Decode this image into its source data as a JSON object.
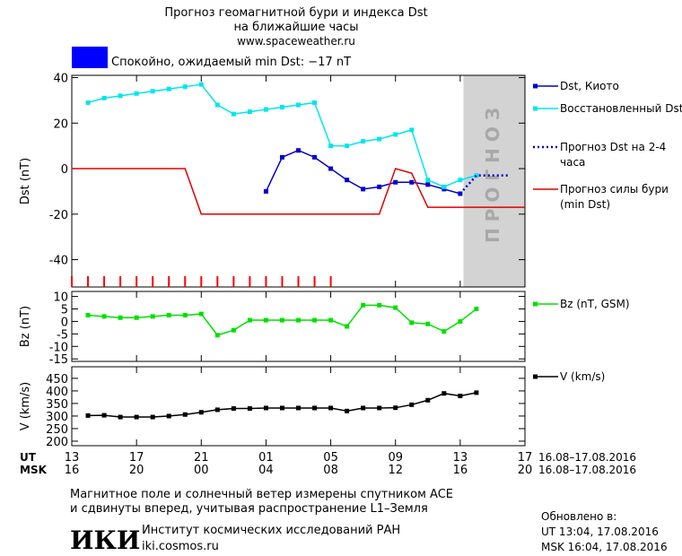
{
  "header": {
    "title": "Прогноз геомагнитной бури и индекса Dst",
    "subtitle": "на ближайшие часы",
    "url": "www.spaceweather.ru",
    "status": {
      "text": "Спокойно, ожидаемый min Dst: −17 nT",
      "color": "#0000ff"
    }
  },
  "chart_data": [
    {
      "type": "line",
      "ylabel": "Dst (nT)",
      "xlim": [
        0,
        28
      ],
      "xticks": [
        0,
        4,
        8,
        12,
        16,
        20,
        24,
        28
      ],
      "ylim": [
        -52,
        41
      ],
      "yticks": [
        -40,
        -20,
        0,
        20,
        40
      ],
      "forecast_span": [
        24.2,
        28
      ],
      "forecast_label": "ПРОГНОЗ",
      "hour_marks": [
        0,
        1,
        2,
        3,
        4,
        5,
        6,
        7,
        8,
        9,
        10,
        11,
        12,
        13,
        14,
        15,
        16
      ],
      "hour_marks_color": "#ff0000",
      "series": [
        {
          "name": "Dst, Киото",
          "color": "#0000cc",
          "style": "solid",
          "marker": true,
          "x": [
            12,
            13,
            14,
            15,
            16,
            17,
            18,
            19,
            20,
            21,
            22,
            23,
            24
          ],
          "values": [
            -10,
            5,
            8,
            5,
            0,
            -5,
            -9,
            -8,
            -6,
            -6,
            -7,
            -9,
            -11
          ]
        },
        {
          "name": "Восстановленный Dst",
          "color": "#00e5ee",
          "style": "solid",
          "marker": true,
          "x": [
            1,
            2,
            3,
            4,
            5,
            6,
            7,
            8,
            9,
            10,
            11,
            12,
            13,
            14,
            15,
            16,
            17,
            18,
            19,
            20,
            21,
            22,
            23,
            24,
            25
          ],
          "values": [
            29,
            31,
            32,
            33,
            34,
            35,
            36,
            37,
            28,
            24,
            25,
            26,
            27,
            28,
            29,
            10,
            10,
            12,
            13,
            15,
            17,
            -5,
            -8,
            -5,
            -3
          ]
        },
        {
          "name": "Прогноз Dst на 2-4 часа",
          "color": "#0000cc",
          "style": "dotted",
          "marker": false,
          "x": [
            24,
            25,
            26,
            27
          ],
          "values": [
            -11,
            -3,
            -3,
            -3
          ]
        },
        {
          "name": "Прогноз силы бури (min Dst)",
          "color": "#dd0000",
          "style": "solid",
          "marker": false,
          "x": [
            0,
            7,
            8,
            19,
            20,
            21,
            22,
            28
          ],
          "values": [
            0,
            0,
            -20,
            -20,
            0,
            -2,
            -17,
            -17
          ]
        }
      ]
    },
    {
      "type": "line",
      "ylabel": "Bz (nT)",
      "xlim": [
        0,
        28
      ],
      "xticks": [
        0,
        4,
        8,
        12,
        16,
        20,
        24,
        28
      ],
      "ylim": [
        -16,
        12
      ],
      "yticks": [
        -15,
        -10,
        -5,
        0,
        5,
        10
      ],
      "series": [
        {
          "name": "Bz (nT, GSM)",
          "color": "#00e000",
          "style": "solid",
          "marker": true,
          "x": [
            1,
            2,
            3,
            4,
            5,
            6,
            7,
            8,
            9,
            10,
            11,
            12,
            13,
            14,
            15,
            16,
            17,
            18,
            19,
            20,
            21,
            22,
            23,
            24,
            25
          ],
          "values": [
            2.5,
            2,
            1.5,
            1.5,
            2,
            2.5,
            2.5,
            3,
            -5.5,
            -3.5,
            0.5,
            0.5,
            0.5,
            0.5,
            0.5,
            0.5,
            -2,
            6.5,
            6.5,
            5.5,
            -0.5,
            -1,
            -4,
            0,
            5
          ]
        }
      ]
    },
    {
      "type": "line",
      "ylabel": "V (km/s)",
      "xlim": [
        0,
        28
      ],
      "xticks": [
        {
          "value": 0,
          "label": "13"
        },
        {
          "value": 4,
          "label": "17"
        },
        {
          "value": 8,
          "label": "21"
        },
        {
          "value": 12,
          "label": "01"
        },
        {
          "value": 16,
          "label": "05"
        },
        {
          "value": 20,
          "label": "09"
        },
        {
          "value": 24,
          "label": "13"
        },
        {
          "value": 28,
          "label": "17"
        }
      ],
      "xticks_msk": [
        {
          "value": 0,
          "label": "16"
        },
        {
          "value": 4,
          "label": "20"
        },
        {
          "value": 8,
          "label": "00"
        },
        {
          "value": 12,
          "label": "04"
        },
        {
          "value": 16,
          "label": "08"
        },
        {
          "value": 20,
          "label": "12"
        },
        {
          "value": 24,
          "label": "16"
        },
        {
          "value": 28,
          "label": "20"
        }
      ],
      "x_row_labels": [
        "UT",
        "MSK"
      ],
      "x_ranges": [
        "16.08–17.08.2016",
        "16.08–17.08.2016"
      ],
      "ylim": [
        182,
        496
      ],
      "yticks": [
        200,
        250,
        300,
        350,
        400,
        450
      ],
      "series": [
        {
          "name": "V (km/s)",
          "color": "#000000",
          "style": "solid",
          "marker": true,
          "x": [
            1,
            2,
            3,
            4,
            5,
            6,
            7,
            8,
            9,
            10,
            11,
            12,
            13,
            14,
            15,
            16,
            17,
            18,
            19,
            20,
            21,
            22,
            23,
            24,
            25
          ],
          "values": [
            302,
            303,
            296,
            296,
            296,
            300,
            306,
            315,
            325,
            330,
            330,
            332,
            332,
            332,
            332,
            332,
            320,
            332,
            332,
            333,
            345,
            363,
            390,
            380,
            393
          ]
        }
      ]
    }
  ],
  "footer": {
    "note": [
      "Магнитное поле и солнечный ветер измерены спутником ACE",
      "и сдвинуты вперед, учитывая распространение L1–Земля"
    ],
    "logo": "ИКИ",
    "institute": "Институт космических исследований РАН",
    "site": "iki.cosmos.ru",
    "updated": [
      "Обновлено в:",
      "UT  13:04, 17.08.2016",
      "MSK 16:04, 17.08.2016"
    ]
  }
}
